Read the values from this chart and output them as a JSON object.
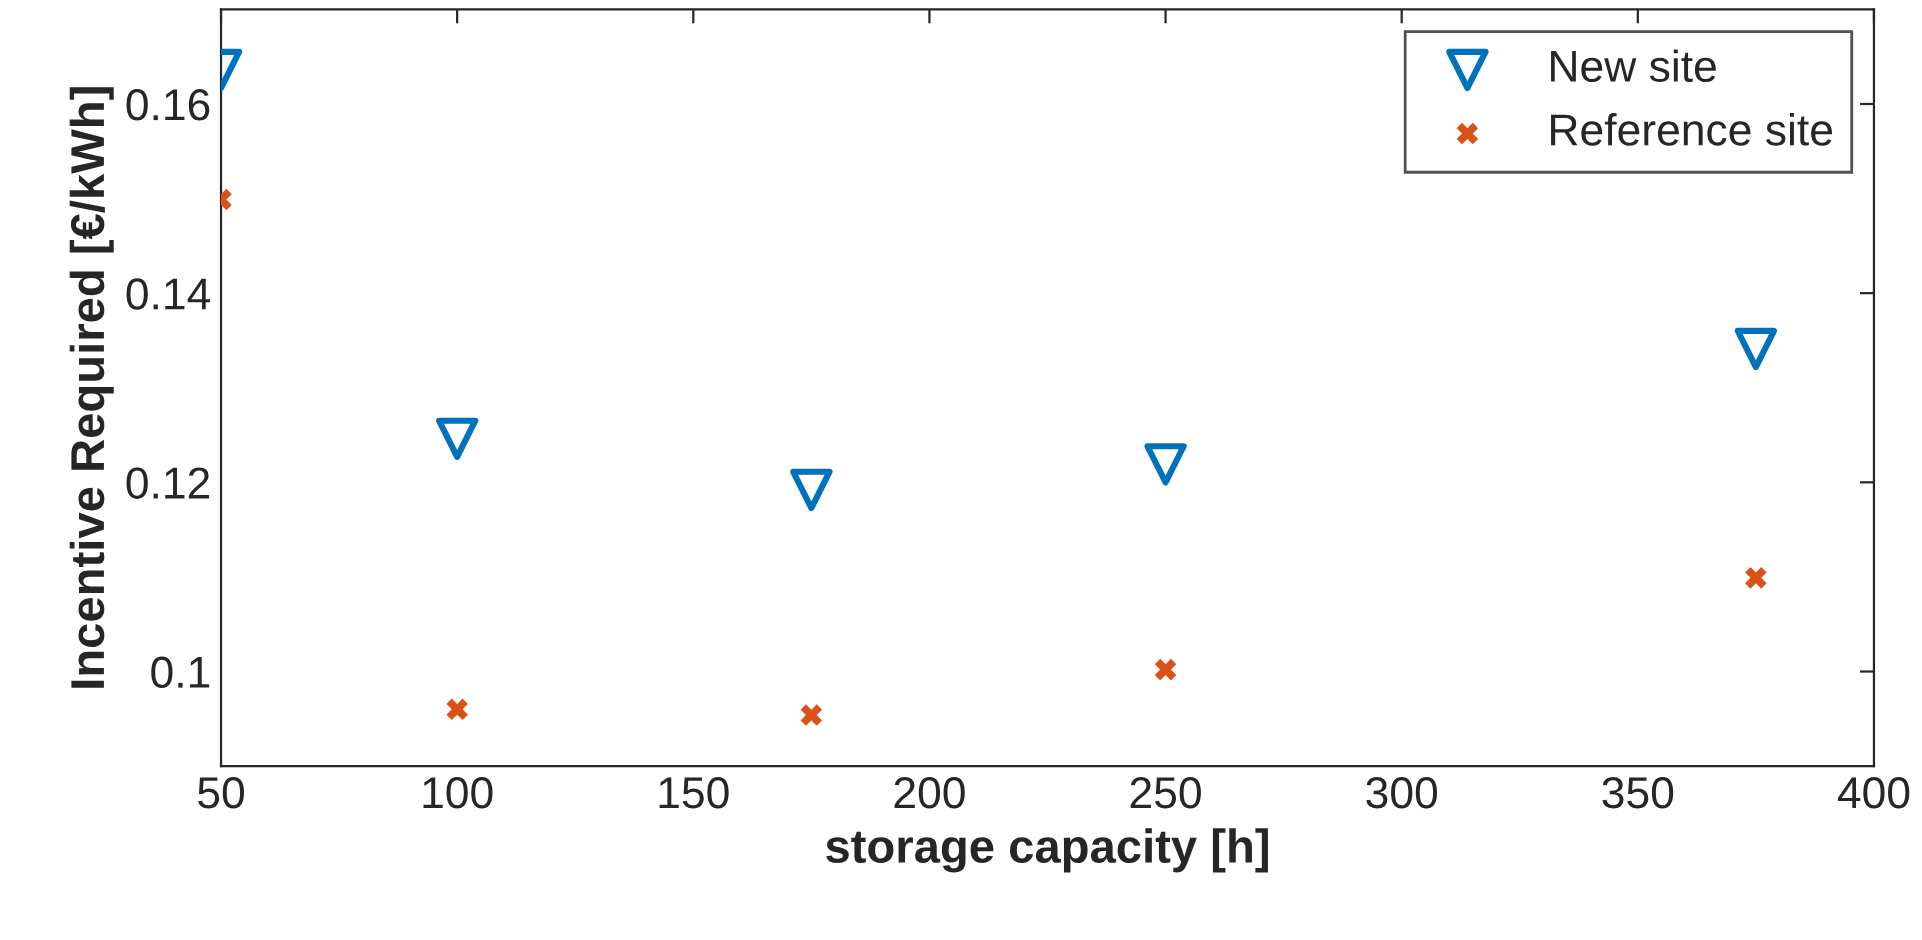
{
  "chart_data": {
    "type": "scatter",
    "xlabel": "storage capacity [h]",
    "ylabel": "Incentive Required [€/kWh]",
    "x": [
      50,
      100,
      175,
      250,
      375
    ],
    "series": [
      {
        "name": "New site",
        "color": "#0072bd",
        "marker": "triangle",
        "values": [
          0.1636,
          0.1246,
          0.1192,
          0.1219,
          0.1341
        ]
      },
      {
        "name": "Reference site",
        "color": "#d95319",
        "marker": "cross",
        "values": [
          0.1499,
          0.096,
          0.0954,
          0.1002,
          0.1099
        ]
      }
    ],
    "xlim": [
      50,
      400
    ],
    "xticks": [
      50,
      100,
      150,
      200,
      250,
      300,
      350,
      400
    ],
    "ylim": [
      0.09,
      0.17
    ],
    "yticks": [
      {
        "value": 0.1,
        "label": "0.1"
      },
      0.12,
      0.14,
      0.16
    ],
    "grid": false,
    "legend": "top right"
  }
}
